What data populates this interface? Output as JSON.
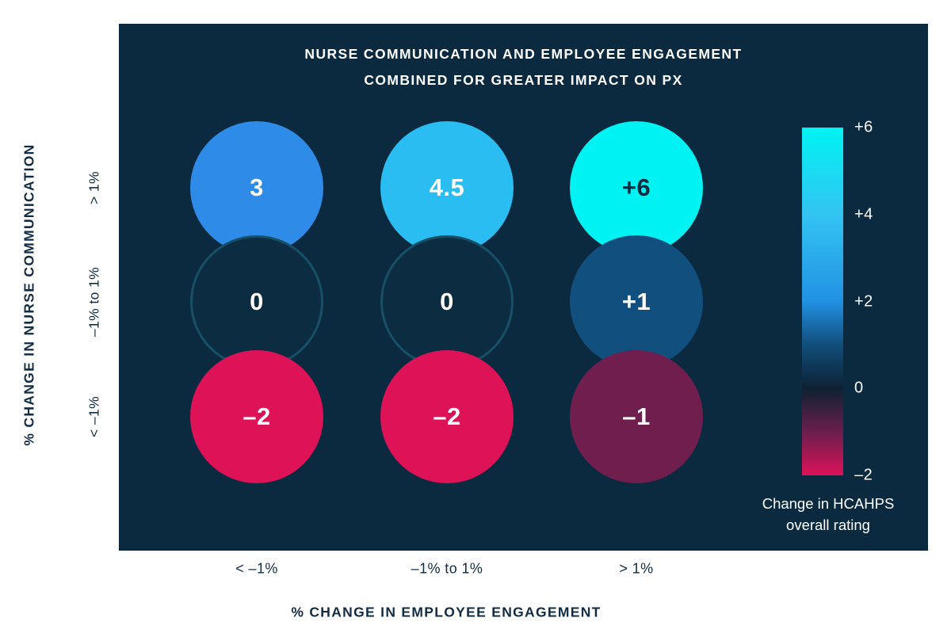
{
  "colors": {
    "panel_background": "#0b2a40",
    "title_text": "#ffffff",
    "axis_text": "#122c44",
    "legend_text": "#ffffff"
  },
  "chart_data": {
    "type": "heatmap",
    "title_line1": "NURSE COMMUNICATION AND EMPLOYEE ENGAGEMENT",
    "title_line2": "COMBINED FOR GREATER IMPACT ON PX",
    "xlabel": "% CHANGE IN EMPLOYEE ENGAGEMENT",
    "ylabel": "% CHANGE IN NURSE COMMUNICATION",
    "x_categories": [
      "< –1%",
      "–1% to 1%",
      "> 1%"
    ],
    "y_categories": [
      "> 1%",
      "–1% to 1%",
      "< –1%"
    ],
    "cells": [
      {
        "row": "> 1%",
        "col": "< –1%",
        "label": "3",
        "value": 3,
        "color": "#2e8ce8",
        "text_color": "#ffffff",
        "outlined": false
      },
      {
        "row": "> 1%",
        "col": "–1% to 1%",
        "label": "4.5",
        "value": 4.5,
        "color": "#29bdf2",
        "text_color": "#ffffff",
        "outlined": false
      },
      {
        "row": "> 1%",
        "col": "> 1%",
        "label": "+6",
        "value": 6,
        "color": "#00f3f3",
        "text_color": "#0b2a40",
        "outlined": false
      },
      {
        "row": "–1% to 1%",
        "col": "< –1%",
        "label": "0",
        "value": 0,
        "color": "#0c2c42",
        "text_color": "#ffffff",
        "outlined": true,
        "ring_color": "#175066"
      },
      {
        "row": "–1% to 1%",
        "col": "–1% to 1%",
        "label": "0",
        "value": 0,
        "color": "#0c2c42",
        "text_color": "#ffffff",
        "outlined": true,
        "ring_color": "#175066"
      },
      {
        "row": "–1% to 1%",
        "col": "> 1%",
        "label": "+1",
        "value": 1,
        "color": "#11507e",
        "text_color": "#ffffff",
        "outlined": false
      },
      {
        "row": "< –1%",
        "col": "< –1%",
        "label": "–2",
        "value": -2,
        "color": "#dd1257",
        "text_color": "#ffffff",
        "outlined": false
      },
      {
        "row": "< –1%",
        "col": "–1% to 1%",
        "label": "–2",
        "value": -2,
        "color": "#dd1257",
        "text_color": "#ffffff",
        "outlined": false
      },
      {
        "row": "< –1%",
        "col": "> 1%",
        "label": "–1",
        "value": -1,
        "color": "#6f1e4e",
        "text_color": "#ffffff",
        "outlined": false
      }
    ],
    "legend": {
      "caption_line1": "Change in HCAHPS",
      "caption_line2": "overall rating",
      "ticks": [
        "+6",
        "+4",
        "+2",
        "0",
        "–2"
      ],
      "value_range": [
        6,
        -2
      ],
      "position": "right",
      "gradient": [
        {
          "pos": 0,
          "color": "#00f3f3"
        },
        {
          "pos": 25,
          "color": "#33c4f2"
        },
        {
          "pos": 50,
          "color": "#2191e2"
        },
        {
          "pos": 62,
          "color": "#11507e"
        },
        {
          "pos": 75,
          "color": "#0d2133"
        },
        {
          "pos": 88,
          "color": "#6f1e4e"
        },
        {
          "pos": 100,
          "color": "#dd1257"
        }
      ]
    }
  }
}
